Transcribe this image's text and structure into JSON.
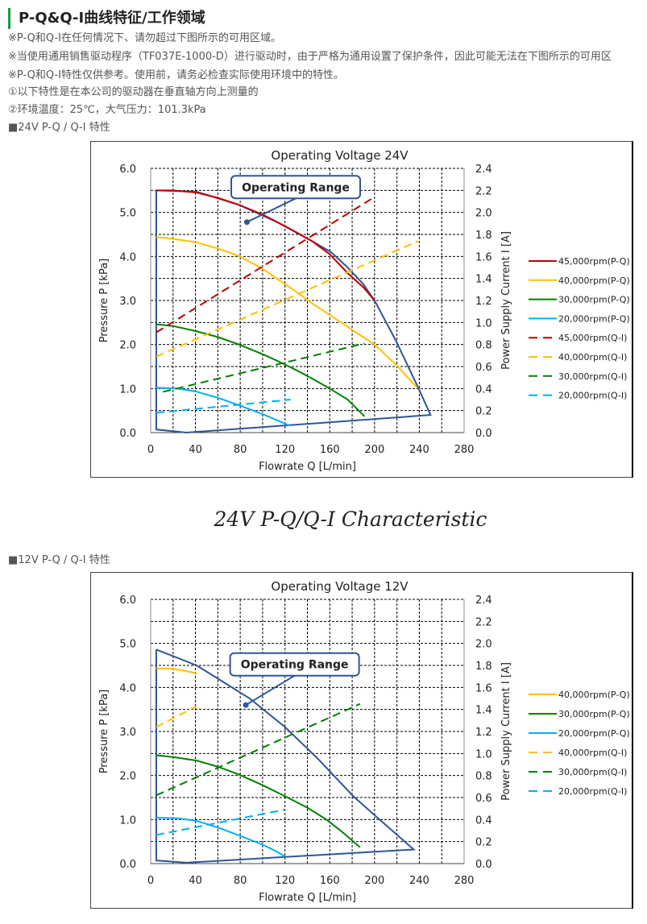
{
  "header": {
    "title": "P-Q&Q-I曲线特征/工作领域"
  },
  "notes": [
    "※P-Q和Q-I在任何情况下、请勿超过下图所示的可用区域。",
    "※当使用通用销售驱动程序（TF037E-1000-D）进行驱动时，由于严格为通用设置了保护条件，因此可能无法在下图所示的可用区",
    "※P-Q和Q-I特性仅供参考。使用前，请务必检查实际使用环境中的特性。",
    "①以下特性是在本公司的驱动器在垂直轴方向上测量的",
    "②环境温度：25℃，大气压力：101.3kPa"
  ],
  "section_24v": "■24V P-Q / Q-I 特性",
  "caption_24v": "24V P-Q/Q-I Characteristic",
  "section_12v": "■12V P-Q / Q-I 特性",
  "chart_data": [
    {
      "type": "line",
      "title": "Operating Voltage 24V",
      "xlabel": "Flowrate Q [L/min]",
      "ylabel": "Pressure P [kPa]",
      "y2label": "Power Supply Current I [A]",
      "xlim": [
        0,
        280
      ],
      "ylim": [
        0,
        6.0
      ],
      "y2lim": [
        0,
        2.4
      ],
      "xticks": [
        "0",
        "40",
        "80",
        "120",
        "160",
        "200",
        "240",
        "280"
      ],
      "yticks": [
        "0.0",
        "1.0",
        "2.0",
        "3.0",
        "4.0",
        "5.0",
        "6.0"
      ],
      "y2ticks": [
        "0.0",
        "0.2",
        "0.4",
        "0.6",
        "0.8",
        "1.0",
        "1.2",
        "1.4",
        "1.6",
        "1.8",
        "2.0",
        "2.2",
        "2.4"
      ],
      "grid": true,
      "legend": "right",
      "annotation": {
        "text": "Operating Range",
        "point": [
          86,
          4.78
        ]
      },
      "operating_range": [
        [
          5,
          5.5
        ],
        [
          41,
          5.47
        ],
        [
          79,
          5.17
        ],
        [
          113,
          4.78
        ],
        [
          144,
          4.35
        ],
        [
          161,
          4.1
        ],
        [
          176,
          3.75
        ],
        [
          190,
          3.37
        ],
        [
          200,
          3.0
        ],
        [
          219,
          2.09
        ],
        [
          239,
          1.02
        ],
        [
          250,
          0.4
        ],
        [
          32,
          0
        ],
        [
          5,
          0.07
        ],
        [
          5,
          5.5
        ]
      ],
      "series": [
        {
          "name": "45,000rpm(P-Q)",
          "color": "#c00000",
          "dash": false,
          "axis": "P",
          "points": [
            [
              5,
              5.5
            ],
            [
              20,
              5.5
            ],
            [
              41,
              5.45
            ],
            [
              60,
              5.33
            ],
            [
              79,
              5.17
            ],
            [
              100,
              4.95
            ],
            [
              113,
              4.78
            ],
            [
              130,
              4.55
            ],
            [
              144,
              4.35
            ],
            [
              160,
              4.05
            ],
            [
              176,
              3.62
            ],
            [
              190,
              3.3
            ],
            [
              200,
              3.0
            ]
          ]
        },
        {
          "name": "40,000rpm(P-Q)",
          "color": "#ffc000",
          "dash": false,
          "axis": "P",
          "points": [
            [
              5,
              4.44
            ],
            [
              20,
              4.4
            ],
            [
              41,
              4.32
            ],
            [
              60,
              4.18
            ],
            [
              79,
              4.01
            ],
            [
              100,
              3.72
            ],
            [
              113,
              3.49
            ],
            [
              130,
              3.2
            ],
            [
              144,
              2.94
            ],
            [
              160,
              2.67
            ],
            [
              176,
              2.4
            ],
            [
              200,
              2.0
            ],
            [
              220,
              1.52
            ],
            [
              238,
              1.02
            ]
          ]
        },
        {
          "name": "30,000rpm(P-Q)",
          "color": "#008000",
          "dash": false,
          "axis": "P",
          "points": [
            [
              5,
              2.46
            ],
            [
              20,
              2.42
            ],
            [
              41,
              2.3
            ],
            [
              60,
              2.17
            ],
            [
              79,
              2.0
            ],
            [
              100,
              1.78
            ],
            [
              113,
              1.63
            ],
            [
              130,
              1.42
            ],
            [
              144,
              1.23
            ],
            [
              160,
              1.0
            ],
            [
              176,
              0.75
            ],
            [
              191,
              0.37
            ]
          ]
        },
        {
          "name": "20,000rpm(P-Q)",
          "color": "#00b0f0",
          "dash": false,
          "axis": "P",
          "points": [
            [
              5,
              1.02
            ],
            [
              24,
              1.0
            ],
            [
              41,
              0.93
            ],
            [
              60,
              0.79
            ],
            [
              79,
              0.62
            ],
            [
              100,
              0.42
            ],
            [
              124,
              0.16
            ]
          ]
        },
        {
          "name": "45,000rpm(Q-I)",
          "color": "#c00000",
          "dash": true,
          "axis": "I",
          "points": [
            [
              5,
              0.91
            ],
            [
              200,
              2.14
            ]
          ]
        },
        {
          "name": "40,000rpm(Q-I)",
          "color": "#ffc000",
          "dash": true,
          "axis": "I",
          "points": [
            [
              5,
              0.69
            ],
            [
              239,
              1.74
            ]
          ]
        },
        {
          "name": "30,000rpm(Q-I)",
          "color": "#008000",
          "dash": true,
          "axis": "I",
          "points": [
            [
              11,
              0.37
            ],
            [
              191,
              0.81
            ]
          ]
        },
        {
          "name": "20,000rpm(Q-I)",
          "color": "#00b0f0",
          "dash": true,
          "axis": "I",
          "points": [
            [
              5,
              0.18
            ],
            [
              125,
              0.3
            ]
          ]
        }
      ]
    },
    {
      "type": "line",
      "title": "Operating Voltage 12V",
      "xlabel": "Flowrate Q [L/min]",
      "ylabel": "Pressure P [kPa]",
      "y2label": "Power Supply Current I [A]",
      "xlim": [
        0,
        280
      ],
      "ylim": [
        0,
        6.0
      ],
      "y2lim": [
        0,
        2.4
      ],
      "xticks": [
        "0",
        "40",
        "80",
        "120",
        "160",
        "200",
        "240",
        "280"
      ],
      "yticks": [
        "0.0",
        "1.0",
        "2.0",
        "3.0",
        "4.0",
        "5.0",
        "6.0"
      ],
      "y2ticks": [
        "0.0",
        "0.2",
        "0.4",
        "0.6",
        "0.8",
        "1.0",
        "1.2",
        "1.4",
        "1.6",
        "1.8",
        "2.0",
        "2.2",
        "2.4"
      ],
      "grid": true,
      "legend": "right",
      "annotation": {
        "text": "Operating Range",
        "point": [
          85,
          3.6
        ]
      },
      "operating_range": [
        [
          5,
          4.86
        ],
        [
          41,
          4.5
        ],
        [
          60,
          4.2
        ],
        [
          89,
          3.74
        ],
        [
          120,
          3.1
        ],
        [
          149,
          2.39
        ],
        [
          181,
          1.53
        ],
        [
          200,
          1.1
        ],
        [
          235,
          0.32
        ],
        [
          120,
          0.15
        ],
        [
          32,
          0.02
        ],
        [
          5,
          0.07
        ],
        [
          5,
          4.86
        ]
      ],
      "series": [
        {
          "name": "40,000rpm(P-Q)",
          "color": "#ffc000",
          "dash": false,
          "axis": "P",
          "points": [
            [
              5,
              4.43
            ],
            [
              16,
              4.43
            ],
            [
              28,
              4.39
            ],
            [
              41,
              4.32
            ]
          ]
        },
        {
          "name": "30,000rpm(P-Q)",
          "color": "#008000",
          "dash": false,
          "axis": "P",
          "points": [
            [
              5,
              2.46
            ],
            [
              20,
              2.42
            ],
            [
              41,
              2.34
            ],
            [
              60,
              2.2
            ],
            [
              79,
              2.02
            ],
            [
              100,
              1.78
            ],
            [
              120,
              1.53
            ],
            [
              140,
              1.27
            ],
            [
              157,
              1.0
            ],
            [
              172,
              0.7
            ],
            [
              187,
              0.37
            ]
          ]
        },
        {
          "name": "20,000rpm(P-Q)",
          "color": "#00b0f0",
          "dash": false,
          "axis": "P",
          "points": [
            [
              5,
              1.04
            ],
            [
              24,
              1.03
            ],
            [
              41,
              0.97
            ],
            [
              60,
              0.82
            ],
            [
              79,
              0.64
            ],
            [
              100,
              0.43
            ],
            [
              112,
              0.28
            ],
            [
              120,
              0.16
            ]
          ]
        },
        {
          "name": "40,000rpm(Q-I)",
          "color": "#ffc000",
          "dash": true,
          "axis": "I",
          "points": [
            [
              5,
              1.24
            ],
            [
              41,
              1.43
            ]
          ]
        },
        {
          "name": "30,000rpm(Q-I)",
          "color": "#008000",
          "dash": true,
          "axis": "I",
          "points": [
            [
              5,
              0.62
            ],
            [
              187,
              1.45
            ]
          ]
        },
        {
          "name": "20,000rpm(Q-I)",
          "color": "#00b0f0",
          "dash": true,
          "axis": "I",
          "points": [
            [
              5,
              0.26
            ],
            [
              120,
              0.49
            ]
          ]
        }
      ]
    }
  ]
}
